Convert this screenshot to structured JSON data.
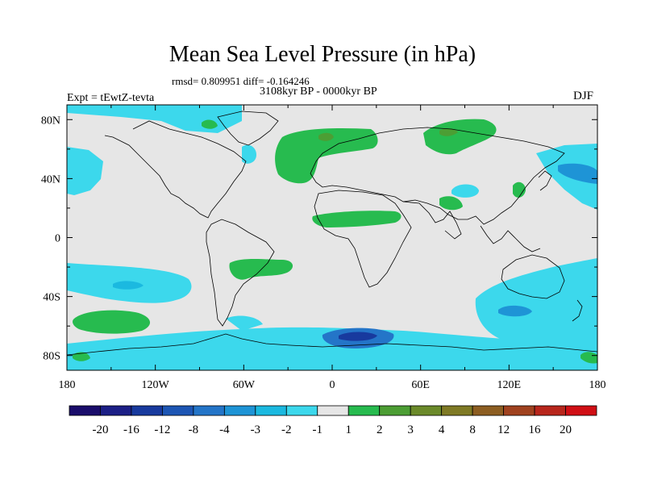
{
  "title": "Mean Sea Level Pressure (in hPa)",
  "stats_line": "rmsd= 0.809951 diff= -0.164246",
  "period_line": "3108kyr BP - 0000kyr BP",
  "experiment_label": "Expt = tEwtZ-tevta",
  "season_label": "DJF",
  "map": {
    "projection": "cylindrical-equidistant",
    "lon_range": [
      -180,
      180
    ],
    "lat_range": [
      -90,
      90
    ],
    "x_ticks": [
      {
        "lon": -180,
        "label": "180"
      },
      {
        "lon": -120,
        "label": "120W"
      },
      {
        "lon": -60,
        "label": "60W"
      },
      {
        "lon": 0,
        "label": "0"
      },
      {
        "lon": 60,
        "label": "60E"
      },
      {
        "lon": 120,
        "label": "120E"
      },
      {
        "lon": 180,
        "label": "180"
      }
    ],
    "y_ticks": [
      {
        "lat": 80,
        "label": "80N"
      },
      {
        "lat": 40,
        "label": "40N"
      },
      {
        "lat": 0,
        "label": "0"
      },
      {
        "lat": -40,
        "label": "40S"
      },
      {
        "lat": -80,
        "label": "80S"
      }
    ],
    "background_color": "#e6e6e6"
  },
  "colorbar": {
    "colors": [
      "#1a0d6b",
      "#1c1f86",
      "#183a9e",
      "#1d56b4",
      "#2475c8",
      "#1e94d6",
      "#1bb9e0",
      "#3cd8ec",
      "#e6e6e6",
      "#27bb4f",
      "#4c9e34",
      "#6b8a2a",
      "#7f7a25",
      "#8d5e22",
      "#a0421f",
      "#b8261c",
      "#d00f15"
    ],
    "labels": [
      "-20",
      "-16",
      "-12",
      "-8",
      "-4",
      "-3",
      "-2",
      "-1",
      "1",
      "2",
      "3",
      "4",
      "8",
      "12",
      "16",
      "20"
    ]
  },
  "regions": [
    {
      "name": "arctic-pacific-cyan-anomaly",
      "color": "#3cd8ec"
    },
    {
      "name": "north-pacific-west-cyan-anomaly",
      "color": "#3cd8ec"
    },
    {
      "name": "north-pacific-east-cyan-anomaly",
      "color": "#3cd8ec"
    },
    {
      "name": "north-atlantic-green-anomaly",
      "color": "#27bb4f"
    },
    {
      "name": "siberia-green-anomaly",
      "color": "#27bb4f"
    },
    {
      "name": "sahara-green-anomaly",
      "color": "#27bb4f"
    },
    {
      "name": "south-america-green-anomaly",
      "color": "#27bb4f"
    },
    {
      "name": "south-pacific-cyan-anomaly",
      "color": "#3cd8ec"
    },
    {
      "name": "south-pacific-green-anomaly",
      "color": "#27bb4f"
    },
    {
      "name": "southern-ocean-cyan-anomaly",
      "color": "#3cd8ec"
    },
    {
      "name": "antarctic-blue-anomaly",
      "color": "#2475c8"
    },
    {
      "name": "australia-south-cyan-anomaly",
      "color": "#3cd8ec"
    }
  ]
}
